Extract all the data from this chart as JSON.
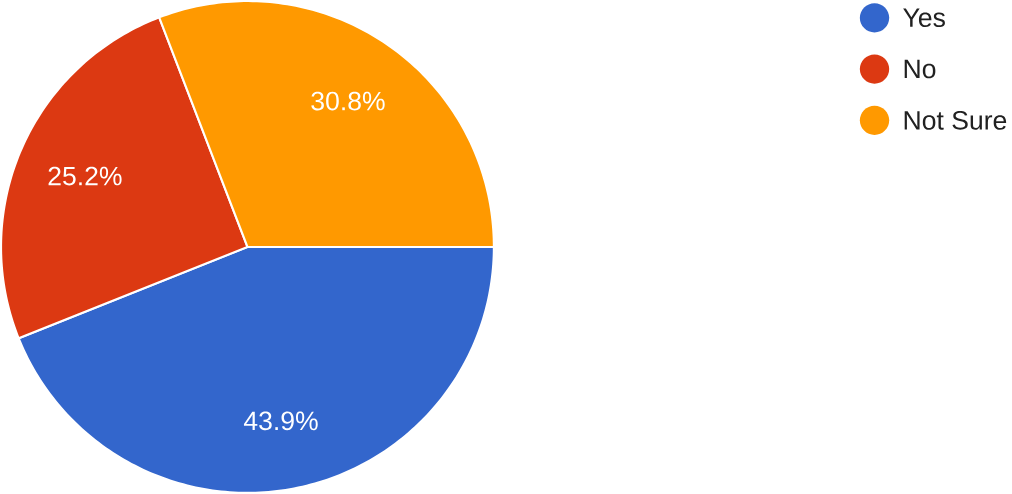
{
  "chart_data": {
    "type": "pie",
    "categories": [
      "Yes",
      "No",
      "Not Sure"
    ],
    "values": [
      43.9,
      25.2,
      30.8
    ],
    "value_labels": [
      "43.9%",
      "25.2%",
      "30.8%"
    ],
    "colors": [
      "#3366cc",
      "#dc3912",
      "#ff9900"
    ],
    "legend": "top right"
  }
}
